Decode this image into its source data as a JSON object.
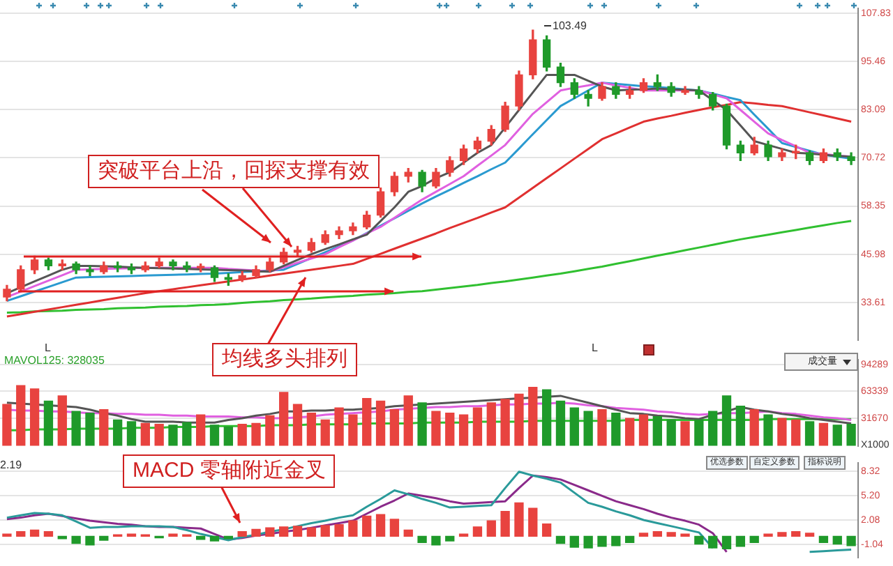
{
  "chart_data": [
    {
      "type": "candlestick",
      "categories": [
        null,
        null,
        null,
        null,
        null,
        null,
        null,
        null,
        null,
        null,
        null,
        null,
        null,
        null,
        null,
        null,
        null,
        null,
        null,
        null,
        null,
        null,
        null,
        null,
        null,
        null,
        null,
        null,
        null,
        null,
        null,
        null,
        null,
        null,
        null,
        null,
        null,
        null,
        null,
        null,
        null,
        null,
        null,
        null,
        null,
        null,
        null,
        null,
        null,
        null,
        null,
        null,
        null,
        null,
        null,
        null,
        null,
        null,
        null,
        null,
        null,
        null
      ],
      "ylim": [
        24,
        109
      ],
      "yticks": [
        107.83,
        95.46,
        83.09,
        70.72,
        58.35,
        45.98,
        33.61
      ],
      "tick_labels": "y",
      "grid": "y",
      "ohlc": [
        [
          35,
          38,
          34,
          37
        ],
        [
          37,
          43,
          36.5,
          42
        ],
        [
          42,
          45.5,
          41,
          44.5
        ],
        [
          44.5,
          45,
          42,
          43
        ],
        [
          43,
          44.5,
          42,
          43.5
        ],
        [
          43.5,
          44,
          41,
          42
        ],
        [
          42,
          43,
          40.5,
          41.5
        ],
        [
          41.5,
          44,
          41,
          43
        ],
        [
          43,
          44,
          41.5,
          42.5
        ],
        [
          42.5,
          43.5,
          41,
          42
        ],
        [
          42,
          44,
          41.5,
          43
        ],
        [
          43,
          45,
          42.5,
          44
        ],
        [
          44,
          44.5,
          42,
          43
        ],
        [
          43,
          44,
          41.5,
          42.5
        ],
        [
          42.5,
          43.5,
          41.5,
          42.5
        ],
        [
          42.5,
          43,
          39,
          40
        ],
        [
          40,
          41,
          38,
          39.5
        ],
        [
          39.5,
          41.5,
          39,
          40.5
        ],
        [
          40.5,
          43,
          40,
          42
        ],
        [
          42,
          45,
          41.5,
          44
        ],
        [
          44,
          47.5,
          43.5,
          46.5
        ],
        [
          46.5,
          48,
          45.5,
          47
        ],
        [
          47,
          50,
          46.5,
          49
        ],
        [
          49,
          52,
          48.5,
          51
        ],
        [
          51,
          53,
          50,
          52
        ],
        [
          52,
          54,
          51,
          53
        ],
        [
          53,
          57,
          52.5,
          56
        ],
        [
          56,
          63,
          55.5,
          62
        ],
        [
          62,
          67,
          61,
          66
        ],
        [
          66,
          68,
          64.5,
          67
        ],
        [
          67,
          67.5,
          62,
          63.5
        ],
        [
          63.5,
          68,
          63,
          67
        ],
        [
          67,
          71,
          66,
          70
        ],
        [
          70,
          74,
          69,
          73
        ],
        [
          73,
          76,
          72,
          75
        ],
        [
          75,
          79,
          74,
          78
        ],
        [
          78,
          85,
          77.5,
          84
        ],
        [
          84,
          93,
          83,
          92
        ],
        [
          92,
          103.49,
          91,
          101
        ],
        [
          101,
          102,
          93,
          94
        ],
        [
          94,
          95,
          89,
          90
        ],
        [
          90,
          91,
          86,
          87
        ],
        [
          87,
          88,
          84,
          86
        ],
        [
          86,
          90,
          85.5,
          89
        ],
        [
          89,
          90,
          86,
          87
        ],
        [
          87,
          89,
          86,
          88
        ],
        [
          88,
          91,
          87.5,
          90
        ],
        [
          90,
          92,
          88,
          89
        ],
        [
          89,
          90,
          86.5,
          87.5
        ],
        [
          87.5,
          89,
          87,
          88
        ],
        [
          88,
          89,
          86,
          87
        ],
        [
          87,
          87.5,
          83,
          84
        ],
        [
          84,
          84.5,
          73,
          74
        ],
        [
          74,
          75,
          70,
          72
        ],
        [
          72,
          76,
          71.5,
          74
        ],
        [
          74,
          75,
          70,
          71
        ],
        [
          71,
          73,
          70,
          72
        ],
        [
          72,
          74,
          70.5,
          72
        ],
        [
          72,
          72.5,
          69,
          70
        ],
        [
          70,
          73,
          69.5,
          72
        ],
        [
          72,
          73,
          70,
          71
        ],
        [
          71,
          72,
          69,
          70
        ]
      ],
      "colors": [
        "#e8433f",
        "#e8433f",
        "#e8433f",
        "#1f9a2a",
        "#e8433f",
        "#1f9a2a",
        "#1f9a2a",
        "#e8433f",
        "#1f9a2a",
        "#1f9a2a",
        "#e8433f",
        "#e8433f",
        "#1f9a2a",
        "#1f9a2a",
        "#e8433f",
        "#1f9a2a",
        "#1f9a2a",
        "#e8433f",
        "#e8433f",
        "#e8433f",
        "#e8433f",
        "#e8433f",
        "#e8433f",
        "#e8433f",
        "#e8433f",
        "#e8433f",
        "#e8433f",
        "#e8433f",
        "#e8433f",
        "#e8433f",
        "#1f9a2a",
        "#e8433f",
        "#e8433f",
        "#e8433f",
        "#e8433f",
        "#e8433f",
        "#e8433f",
        "#e8433f",
        "#e8433f",
        "#1f9a2a",
        "#1f9a2a",
        "#1f9a2a",
        "#1f9a2a",
        "#e8433f",
        "#1f9a2a",
        "#e8433f",
        "#e8433f",
        "#1f9a2a",
        "#1f9a2a",
        "#e8433f",
        "#1f9a2a",
        "#1f9a2a",
        "#1f9a2a",
        "#1f9a2a",
        "#e8433f",
        "#1f9a2a",
        "#e8433f",
        "#e8433f",
        "#1f9a2a",
        "#e8433f",
        "#1f9a2a",
        "#1f9a2a"
      ],
      "series": [
        {
          "type": "line",
          "color": "#555555",
          "values": [
            36,
            37.5,
            39,
            40.5,
            42,
            43,
            43,
            42.9,
            42.8,
            42.6,
            42.5,
            42.4,
            42.3,
            42.2,
            42.1,
            42,
            41.9,
            41.8,
            41.6,
            41.5,
            43,
            44.5,
            46,
            47.3,
            48.5,
            49.8,
            51,
            54.5,
            58,
            62,
            63.5,
            65.5,
            67,
            69.5,
            72,
            74,
            78.5,
            83,
            87.5,
            92,
            92,
            92,
            90.5,
            89,
            88,
            88.2,
            88.3,
            88.5,
            88.3,
            88.2,
            88,
            85.5,
            83,
            79,
            75,
            74,
            73,
            72,
            71.8,
            71.5,
            71.2,
            71
          ]
        },
        {
          "type": "line",
          "color": "#e060e0",
          "values": [
            35,
            36.4,
            37.8,
            39.2,
            40.6,
            42,
            42.1,
            42.2,
            42.3,
            42.4,
            42.5,
            42.5,
            42.5,
            42.5,
            42.5,
            42.5,
            42.2,
            42,
            41.8,
            41.5,
            42.6,
            43.8,
            44.9,
            46,
            47.8,
            49.5,
            51.3,
            53,
            55.3,
            57.7,
            60,
            62,
            64,
            66,
            68.7,
            71.3,
            74,
            78,
            82,
            85,
            88,
            88.7,
            89.3,
            90,
            89.3,
            88.7,
            88,
            88,
            88,
            88,
            88,
            87,
            86,
            83,
            80,
            77,
            75.3,
            73.7,
            72,
            71.7,
            71.3,
            71
          ]
        },
        {
          "type": "line",
          "color": "#2a9ad0",
          "values": [
            34,
            35.2,
            36.4,
            37.6,
            38.8,
            40,
            40.1,
            40.2,
            40.3,
            40.4,
            40.5,
            40.6,
            40.7,
            40.8,
            40.9,
            41,
            41.2,
            41.4,
            41.6,
            41.8,
            42,
            43.5,
            45,
            46.5,
            48,
            49.5,
            51.4,
            53.3,
            55.2,
            57.1,
            59,
            60.8,
            62.5,
            64.3,
            66,
            67.8,
            69.5,
            73.1,
            76.8,
            80.4,
            84,
            86,
            88,
            90,
            89.7,
            89.4,
            89.1,
            88.9,
            88.6,
            88.3,
            88,
            87.2,
            86.3,
            85.5,
            81.8,
            78.2,
            74.5,
            73.5,
            72.5,
            71.5,
            71,
            70.5
          ]
        },
        {
          "type": "line",
          "color": "#e03030",
          "values": [
            30,
            30.6,
            31.2,
            31.8,
            32.4,
            33,
            33.6,
            34.2,
            34.8,
            35.4,
            36,
            36.5,
            37,
            37.5,
            38,
            38.5,
            39,
            39.5,
            40,
            40.5,
            41,
            41.5,
            42,
            42.5,
            43,
            43.5,
            44.8,
            46.1,
            47.4,
            48.7,
            50,
            51.3,
            52.7,
            54,
            55.3,
            56.7,
            58,
            60.5,
            63,
            65.5,
            68,
            70.5,
            73,
            75.5,
            77,
            78.5,
            80,
            80.8,
            81.5,
            82.3,
            83,
            83.7,
            84.3,
            85,
            84.7,
            84.3,
            84,
            83.2,
            82.4,
            81.6,
            80.8,
            80
          ]
        },
        {
          "type": "line",
          "color": "#30c030",
          "values": [
            31,
            31.1,
            31.3,
            31.4,
            31.5,
            31.7,
            31.8,
            31.9,
            32.1,
            32.2,
            32.3,
            32.5,
            32.6,
            32.7,
            32.9,
            33,
            33.2,
            33.5,
            33.7,
            33.9,
            34.2,
            34.4,
            34.6,
            34.9,
            35.1,
            35.3,
            35.6,
            35.8,
            36,
            36.3,
            36.5,
            36.9,
            37.3,
            37.7,
            38.1,
            38.6,
            39,
            39.5,
            40,
            40.5,
            41,
            41.6,
            42.2,
            42.8,
            43.5,
            44.2,
            44.9,
            45.6,
            46.3,
            47,
            47.7,
            48.4,
            49.1,
            49.8,
            50.4,
            51,
            51.6,
            52.2,
            52.8,
            53.4,
            54,
            54.5
          ]
        }
      ],
      "annotations": [
        "103.49",
        "突破平台上沿，回探支撑有效",
        "均线多头排列",
        "L",
        "L"
      ]
    },
    {
      "type": "bar",
      "categories": [
        null,
        null,
        null,
        null,
        null,
        null,
        null,
        null,
        null,
        null,
        null,
        null,
        null,
        null,
        null,
        null,
        null,
        null,
        null,
        null,
        null,
        null,
        null,
        null,
        null,
        null,
        null,
        null,
        null,
        null,
        null,
        null,
        null,
        null,
        null,
        null,
        null,
        null,
        null,
        null,
        null,
        null,
        null,
        null,
        null,
        null,
        null,
        null,
        null,
        null,
        null,
        null,
        null,
        null,
        null,
        null,
        null,
        null,
        null,
        null,
        null,
        null
      ],
      "ylim": [
        0,
        100000
      ],
      "yticks": [
        94289,
        63339,
        31670
      ],
      "tick_labels": "y",
      "grid": "y",
      "values": [
        48000,
        70000,
        66000,
        52000,
        58000,
        40000,
        38000,
        42000,
        30000,
        28000,
        26000,
        25000,
        24000,
        27000,
        36000,
        24000,
        22000,
        25000,
        26000,
        35000,
        62000,
        48000,
        38000,
        30000,
        44000,
        36000,
        55000,
        52000,
        42000,
        58000,
        50000,
        40000,
        38000,
        36000,
        44000,
        50000,
        54000,
        60000,
        68000,
        65000,
        52000,
        44000,
        40000,
        42000,
        38000,
        32000,
        36000,
        34000,
        30000,
        28000,
        30000,
        40000,
        58000,
        46000,
        42000,
        36000,
        32000,
        30000,
        28000,
        26000,
        24000,
        25000
      ],
      "colors": [
        "#e8433f",
        "#e8433f",
        "#e8433f",
        "#1f9a2a",
        "#e8433f",
        "#1f9a2a",
        "#1f9a2a",
        "#e8433f",
        "#1f9a2a",
        "#1f9a2a",
        "#e8433f",
        "#e8433f",
        "#1f9a2a",
        "#1f9a2a",
        "#e8433f",
        "#1f9a2a",
        "#1f9a2a",
        "#e8433f",
        "#e8433f",
        "#e8433f",
        "#e8433f",
        "#e8433f",
        "#e8433f",
        "#e8433f",
        "#e8433f",
        "#e8433f",
        "#e8433f",
        "#e8433f",
        "#e8433f",
        "#e8433f",
        "#1f9a2a",
        "#e8433f",
        "#e8433f",
        "#e8433f",
        "#e8433f",
        "#e8433f",
        "#e8433f",
        "#e8433f",
        "#e8433f",
        "#1f9a2a",
        "#1f9a2a",
        "#1f9a2a",
        "#1f9a2a",
        "#e8433f",
        "#1f9a2a",
        "#e8433f",
        "#e8433f",
        "#1f9a2a",
        "#1f9a2a",
        "#e8433f",
        "#1f9a2a",
        "#1f9a2a",
        "#1f9a2a",
        "#1f9a2a",
        "#e8433f",
        "#1f9a2a",
        "#e8433f",
        "#e8433f",
        "#1f9a2a",
        "#e8433f",
        "#1f9a2a",
        "#1f9a2a"
      ],
      "series": [
        {
          "type": "line",
          "color": "#555555",
          "values": [
            50000,
            49000,
            48000,
            47000,
            46000,
            45000,
            42000,
            38000,
            35000,
            31000,
            28000,
            28000,
            28000,
            27000,
            27000,
            27000,
            30000,
            32000,
            35000,
            37000,
            40000,
            40000,
            41000,
            41000,
            42000,
            42000,
            43000,
            44000,
            46000,
            47000,
            48000,
            49000,
            50000,
            51000,
            52000,
            53000,
            54000,
            55000,
            56000,
            57000,
            58000,
            54000,
            50000,
            46000,
            42000,
            38000,
            37000,
            35000,
            34000,
            32000,
            31000,
            36000,
            40000,
            45000,
            42000,
            40000,
            37000,
            35000,
            32000,
            30000,
            28000,
            26000
          ]
        },
        {
          "type": "line",
          "color": "#e060e0",
          "values": [
            42000,
            41000,
            41000,
            40000,
            40000,
            39000,
            38000,
            38000,
            37000,
            37000,
            36000,
            36000,
            35000,
            35000,
            34000,
            34000,
            34000,
            33000,
            33000,
            32000,
            32000,
            33000,
            34000,
            36000,
            37000,
            38000,
            39000,
            40000,
            42000,
            43000,
            44000,
            45000,
            45000,
            46000,
            46000,
            47000,
            48000,
            48000,
            49000,
            49000,
            50000,
            49000,
            47000,
            46000,
            44000,
            43000,
            42000,
            40000,
            39000,
            37000,
            36000,
            37000,
            38000,
            38000,
            39000,
            40000,
            38000,
            37000,
            35000,
            33000,
            32000,
            30000
          ]
        },
        {
          "type": "line",
          "color": "#30c030",
          "values": [
            18000,
            18000,
            19000,
            19000,
            19000,
            20000,
            20000,
            20000,
            20000,
            21000,
            21000,
            21000,
            22000,
            22000,
            22000,
            23000,
            23000,
            23000,
            23000,
            24000,
            24000,
            24000,
            25000,
            25000,
            25000,
            25000,
            26000,
            26000,
            26000,
            26000,
            27000,
            27000,
            27000,
            27000,
            28000,
            28000,
            28000,
            28000,
            29000,
            29000,
            29000,
            29000,
            29000,
            29000,
            29000,
            30000,
            30000,
            30000,
            30000,
            30000,
            30000,
            30000,
            30000,
            30000,
            30000,
            31000,
            31000,
            31000,
            31000,
            31000,
            31000,
            31000
          ]
        }
      ],
      "annotations": [
        "MAVOL125: 328035",
        "成交量",
        "X1000"
      ]
    },
    {
      "type": "bar",
      "categories": [
        null,
        null,
        null,
        null,
        null,
        null,
        null,
        null,
        null,
        null,
        null,
        null,
        null,
        null,
        null,
        null,
        null,
        null,
        null,
        null,
        null,
        null,
        null,
        null,
        null,
        null,
        null,
        null,
        null,
        null,
        null,
        null,
        null,
        null,
        null,
        null,
        null,
        null,
        null,
        null,
        null,
        null,
        null,
        null,
        null,
        null,
        null,
        null,
        null,
        null,
        null,
        null,
        null,
        null,
        null,
        null,
        null,
        null,
        null,
        null,
        null,
        null
      ],
      "ylim": [
        -2.7,
        9.4
      ],
      "yticks": [
        8.32,
        {
          "value": 5.2,
          "label": "5.20"
        },
        2.08,
        -1.04
      ],
      "tick_labels": "y",
      "grid": "y",
      "values": [
        0.3,
        0.6,
        0.8,
        0.6,
        -0.3,
        -0.9,
        -1.1,
        -0.5,
        0.2,
        0.3,
        0.2,
        -0.2,
        0.3,
        0.2,
        -0.4,
        -0.6,
        -0.3,
        0.6,
        0.9,
        1.1,
        1.2,
        1.3,
        1.1,
        1.4,
        1.5,
        2.0,
        2.6,
        2.8,
        2.2,
        0.8,
        -0.8,
        -1.1,
        -0.6,
        0.3,
        1.2,
        2.0,
        3.2,
        4.3,
        3.6,
        1.6,
        -0.9,
        -1.4,
        -1.5,
        -1.3,
        -1.2,
        -0.8,
        0.4,
        0.6,
        0.5,
        0.3,
        -1.0,
        -1.5,
        -1.6,
        -1.3,
        -0.8,
        0.3,
        0.5,
        0.6,
        0.4,
        -0.8,
        -1.0,
        -1.2
      ],
      "colors": [
        "#e8433f",
        "#e8433f",
        "#e8433f",
        "#e8433f",
        "#1f9a2a",
        "#1f9a2a",
        "#1f9a2a",
        "#1f9a2a",
        "#e8433f",
        "#e8433f",
        "#e8433f",
        "#1f9a2a",
        "#e8433f",
        "#e8433f",
        "#1f9a2a",
        "#1f9a2a",
        "#1f9a2a",
        "#e8433f",
        "#e8433f",
        "#e8433f",
        "#e8433f",
        "#e8433f",
        "#e8433f",
        "#e8433f",
        "#e8433f",
        "#e8433f",
        "#e8433f",
        "#e8433f",
        "#e8433f",
        "#e8433f",
        "#1f9a2a",
        "#1f9a2a",
        "#1f9a2a",
        "#e8433f",
        "#e8433f",
        "#e8433f",
        "#e8433f",
        "#e8433f",
        "#e8433f",
        "#e8433f",
        "#1f9a2a",
        "#1f9a2a",
        "#1f9a2a",
        "#1f9a2a",
        "#1f9a2a",
        "#1f9a2a",
        "#e8433f",
        "#e8433f",
        "#e8433f",
        "#e8433f",
        "#1f9a2a",
        "#1f9a2a",
        "#1f9a2a",
        "#1f9a2a",
        "#1f9a2a",
        "#e8433f",
        "#e8433f",
        "#e8433f",
        "#e8433f",
        "#1f9a2a",
        "#1f9a2a",
        "#1f9a2a"
      ],
      "series": [
        {
          "type": "line",
          "color": "#2a9a9a",
          "values": [
            2.4,
            2.7,
            3.0,
            2.9,
            2.7,
            1.9,
            1.1,
            1.2,
            1.2,
            1.3,
            1.3,
            1.3,
            1.2,
            0.8,
            0.3,
            -0.1,
            -0.5,
            -0.1,
            0.2,
            0.6,
            0.9,
            1.3,
            1.7,
            2.0,
            2.4,
            2.7,
            3.8,
            4.8,
            5.9,
            5.4,
            4.8,
            4.3,
            3.7,
            3.8,
            3.9,
            4.0,
            6.2,
            8.3,
            7.8,
            7.4,
            6.9,
            5.6,
            4.3,
            3.8,
            3.2,
            2.7,
            2.1,
            1.7,
            1.3,
            0.9,
            0.5,
            -1.5,
            null,
            null,
            null,
            null,
            null,
            null,
            -2.0,
            -1.9,
            -1.8,
            -1.7
          ]
        },
        {
          "type": "line",
          "color": "#8a2a8a",
          "values": [
            2.2,
            2.4,
            2.7,
            2.9,
            2.6,
            2.3,
            2.0,
            1.8,
            1.6,
            1.5,
            1.3,
            1.2,
            1.2,
            1.1,
            1.0,
            0.3,
            -0.4,
            -0.2,
            0.1,
            0.3,
            0.6,
            0.8,
            1.1,
            1.4,
            1.7,
            2.0,
            2.9,
            3.8,
            4.6,
            5.5,
            5.2,
            4.9,
            4.5,
            4.2,
            4.3,
            4.4,
            4.5,
            6.2,
            7.8,
            7.6,
            7.3,
            6.6,
            5.9,
            5.2,
            4.5,
            4.0,
            3.5,
            2.9,
            2.4,
            2.0,
            1.5,
            0.4,
            -2.0,
            null,
            null,
            null,
            null,
            null,
            null,
            null,
            null,
            null
          ]
        }
      ],
      "annotations": [
        "MACD 零轴附近金叉",
        "优选参数",
        "自定义参数",
        "指标说明",
        "2.19"
      ]
    }
  ]
}
